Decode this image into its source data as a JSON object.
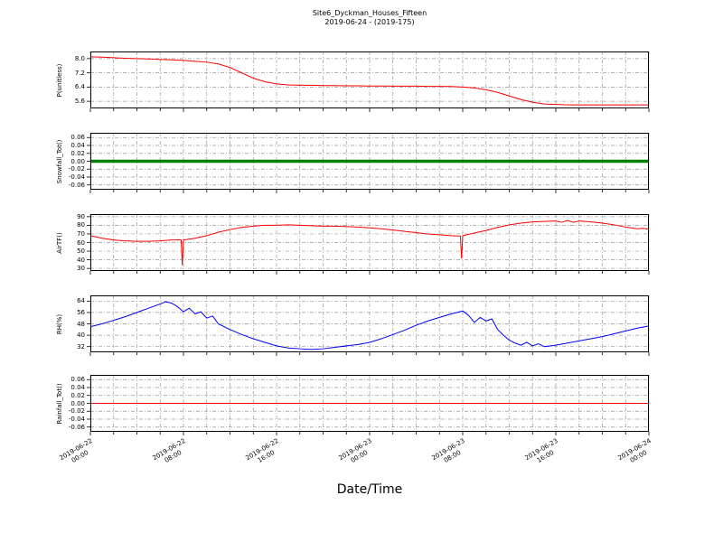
{
  "title": {
    "line1": "Site6_Dyckman_Houses_Fifteen",
    "line2": "2019-06-24 - (2019-175)"
  },
  "xaxis": {
    "label": "Date/Time",
    "range_hours": [
      0,
      48
    ],
    "minor_grid_hours": 2,
    "tick_hours": [
      0,
      8,
      16,
      24,
      32,
      40,
      48
    ],
    "tick_labels": [
      "2019-06-22\n00:00",
      "2019-06-22\n08:00",
      "2019-06-22\n16:00",
      "2019-06-23\n00:00",
      "2019-06-23\n08:00",
      "2019-06-23\n16:00",
      "2019-06-24\n00:00"
    ]
  },
  "grid": {
    "color": "#999999",
    "style": "dash-dot",
    "enabled": true
  },
  "chart_data": {
    "type": "line",
    "title": "Site6_Dyckman_Houses_Fifteen 2019-06-24 - (2019-175)",
    "xlabel": "Date/Time",
    "x_unit": "hours since 2019-06-22 00:00",
    "panels": [
      {
        "ylabel": "P(unitless)",
        "color": "#ff0000",
        "linewidth": 1,
        "ylim": [
          5.2,
          8.4
        ],
        "ytick_values": [
          5.6,
          6.4,
          7.2,
          8.0
        ],
        "ytick_labels": [
          "5.6",
          "6.4",
          "7.2",
          "8.0"
        ],
        "x": [
          0,
          1,
          2,
          3,
          4,
          5,
          6,
          7,
          8,
          9,
          10,
          11,
          12,
          13,
          14,
          15,
          16,
          17,
          18,
          19,
          20,
          21,
          22,
          23,
          24,
          25,
          26,
          27,
          28,
          29,
          30,
          31,
          32,
          33,
          34,
          35,
          36,
          37,
          38,
          39,
          40,
          41,
          42,
          43,
          44,
          45,
          46,
          47,
          48
        ],
        "y": [
          8.1,
          8.08,
          8.05,
          8.02,
          8.0,
          7.98,
          7.95,
          7.93,
          7.9,
          7.85,
          7.8,
          7.7,
          7.5,
          7.2,
          6.9,
          6.7,
          6.58,
          6.52,
          6.5,
          6.5,
          6.48,
          6.48,
          6.47,
          6.47,
          6.46,
          6.46,
          6.45,
          6.45,
          6.45,
          6.44,
          6.44,
          6.43,
          6.4,
          6.35,
          6.25,
          6.1,
          5.9,
          5.7,
          5.55,
          5.45,
          5.42,
          5.4,
          5.4,
          5.4,
          5.4,
          5.4,
          5.4,
          5.4,
          5.4
        ]
      },
      {
        "ylabel": "Snowfall_Tot()",
        "color": "#008000",
        "linewidth": 3.5,
        "ylim": [
          -0.072,
          0.072
        ],
        "ytick_values": [
          -0.06,
          -0.04,
          -0.02,
          0,
          0.02,
          0.04,
          0.06
        ],
        "ytick_labels": [
          "-0.06",
          "-0.04",
          "-0.02",
          "0.00",
          "0.02",
          "0.04",
          "0.06"
        ],
        "x": [
          0,
          48
        ],
        "y": [
          0,
          0
        ]
      },
      {
        "ylabel": "AirTF()",
        "color": "#ff0000",
        "linewidth": 1,
        "ylim": [
          27,
          93
        ],
        "ytick_values": [
          30,
          40,
          50,
          60,
          70,
          80,
          90
        ],
        "ytick_labels": [
          "30",
          "40",
          "50",
          "60",
          "70",
          "80",
          "90"
        ],
        "x": [
          0,
          1,
          2,
          3,
          4,
          5,
          6,
          7,
          7.8,
          7.9,
          8,
          9,
          10,
          11,
          12,
          13,
          14,
          15,
          16,
          17,
          18,
          19,
          20,
          21,
          22,
          23,
          24,
          25,
          26,
          27,
          28,
          29,
          30,
          31,
          31.8,
          31.9,
          32,
          33,
          34,
          35,
          36,
          37,
          38,
          39,
          40,
          40.5,
          41,
          41.5,
          42,
          42.5,
          43,
          44,
          45,
          46,
          47,
          47.5,
          48
        ],
        "y": [
          68,
          65,
          63,
          62,
          61.5,
          61.5,
          62,
          63,
          63,
          34,
          63,
          65,
          68,
          72,
          75,
          77.5,
          79,
          80,
          80,
          80.5,
          80,
          79.5,
          79,
          79,
          78.5,
          78,
          77,
          76,
          74.5,
          73,
          71.5,
          70,
          69,
          68,
          67.5,
          42,
          68,
          71,
          74,
          77.5,
          80.5,
          82.5,
          84,
          84.5,
          85,
          83.5,
          85.5,
          83.5,
          85,
          84.5,
          84,
          82.5,
          80.5,
          78,
          76,
          76.5,
          75.5
        ]
      },
      {
        "ylabel": "RH(%)",
        "color": "#0000ff",
        "linewidth": 1,
        "ylim": [
          28,
          68
        ],
        "ytick_values": [
          32,
          40,
          48,
          56,
          64
        ],
        "ytick_labels": [
          "32",
          "40",
          "48",
          "56",
          "64"
        ],
        "x": [
          0,
          1,
          2,
          3,
          4,
          5,
          6,
          6.5,
          7,
          7.5,
          8,
          8.5,
          9,
          9.5,
          10,
          10.5,
          11,
          12,
          13,
          14,
          15,
          16,
          17,
          18,
          19,
          20,
          21,
          22,
          23,
          24,
          25,
          26,
          27,
          28,
          29,
          30,
          31,
          32,
          32.5,
          33,
          33.5,
          34,
          34.5,
          35,
          35.5,
          36,
          36.5,
          37,
          37.5,
          38,
          38.5,
          39,
          40,
          41,
          42,
          43,
          44,
          45,
          46,
          47,
          48
        ],
        "y": [
          46,
          48,
          50.5,
          53,
          56,
          59,
          62,
          63.5,
          62.5,
          60,
          56.5,
          59,
          55,
          56.5,
          52,
          53.5,
          48,
          44,
          40.5,
          37.5,
          35,
          32.5,
          31,
          30.5,
          30,
          30.5,
          31.5,
          32.5,
          33.5,
          35,
          37.5,
          40.5,
          43.5,
          47,
          50,
          52.5,
          55,
          57,
          54,
          49,
          52.5,
          50,
          51.5,
          44,
          40,
          36.5,
          34.5,
          33,
          35,
          32.5,
          34,
          32,
          33,
          34.5,
          36,
          37.5,
          39,
          41,
          43,
          45,
          46.5
        ]
      },
      {
        "ylabel": "Rainfall_Tot()",
        "color": "#ff0000",
        "linewidth": 1,
        "ylim": [
          -0.072,
          0.072
        ],
        "ytick_values": [
          -0.06,
          -0.04,
          -0.02,
          0,
          0.02,
          0.04,
          0.06
        ],
        "ytick_labels": [
          "-0.06",
          "-0.04",
          "-0.02",
          "0.00",
          "0.02",
          "0.04",
          "0.06"
        ],
        "x": [
          0,
          48
        ],
        "y": [
          0,
          0
        ]
      }
    ]
  }
}
